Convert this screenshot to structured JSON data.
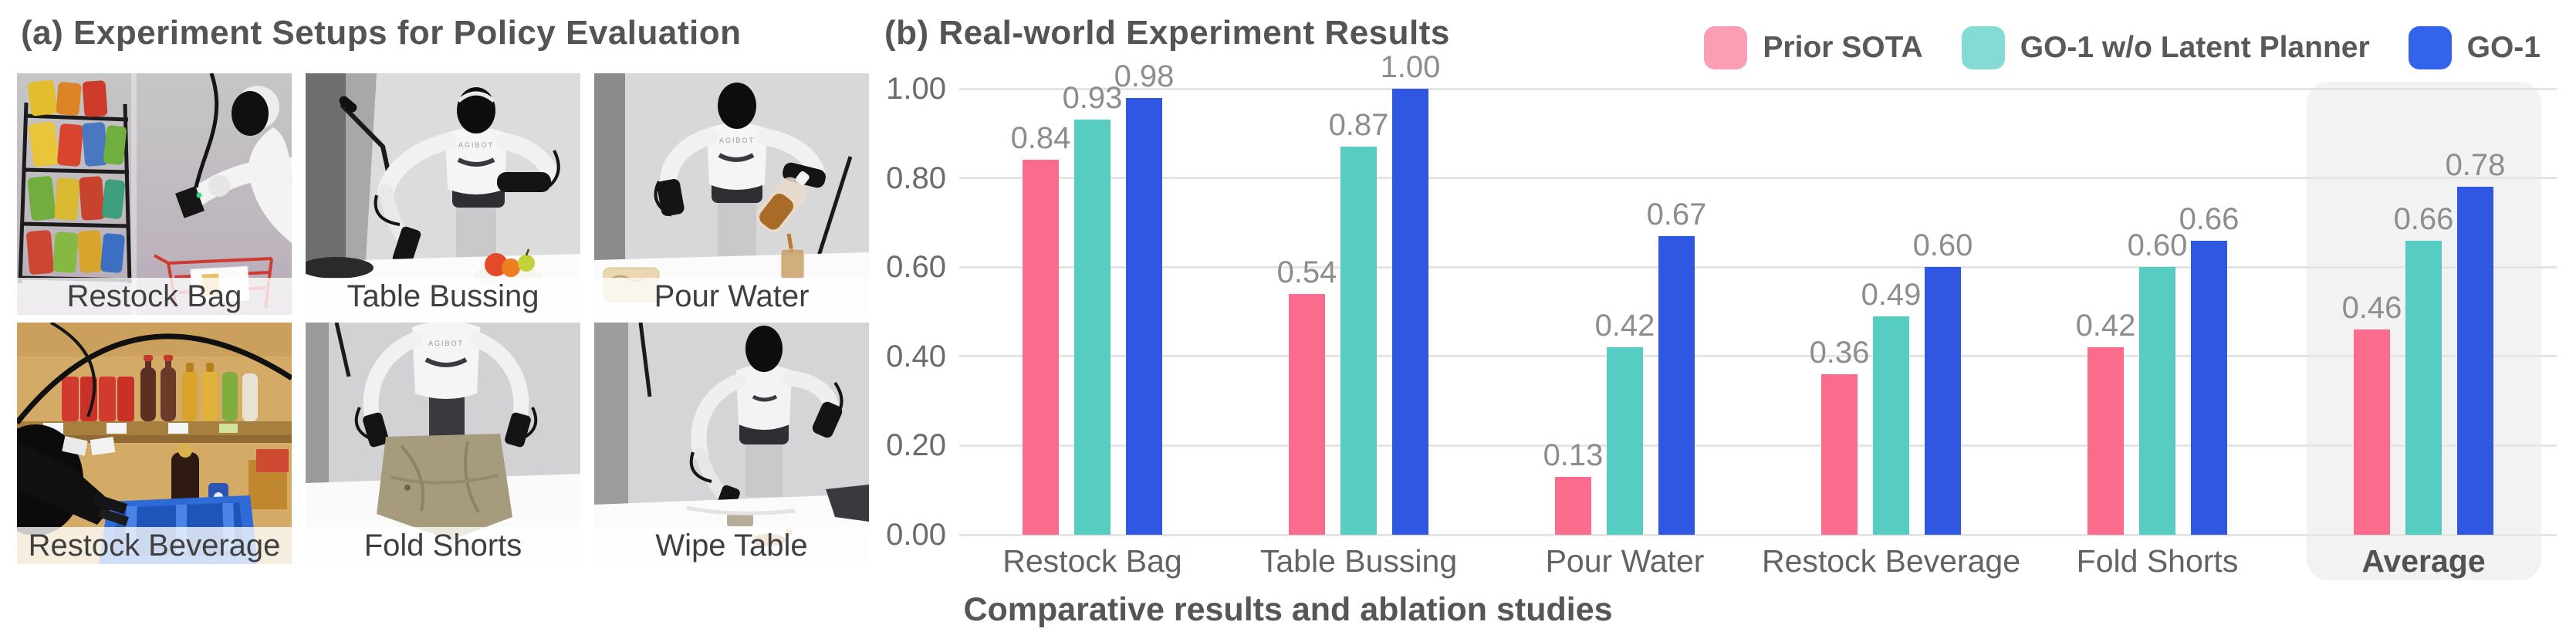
{
  "figure": {
    "panel_a_title": "(a) Experiment Setups for Policy Evaluation",
    "panel_b_title": "(b) Real-world Experiment Results",
    "caption": "Comparative results and ablation studies"
  },
  "robot_brand": "AGIBOT",
  "setups": [
    {
      "label": "Restock Bag"
    },
    {
      "label": "Table Bussing"
    },
    {
      "label": "Pour Water"
    },
    {
      "label": "Restock Beverage"
    },
    {
      "label": "Fold Shorts"
    },
    {
      "label": "Wipe Table"
    }
  ],
  "chart_data": {
    "type": "bar",
    "title": "(b) Real-world Experiment Results",
    "categories": [
      "Restock Bag",
      "Table Bussing",
      "Pour Water",
      "Restock Beverage",
      "Fold Shorts",
      "Average"
    ],
    "series": [
      {
        "name": "Prior SOTA",
        "color": "#FB6C8C",
        "legend_color": "#FA9DB5",
        "values": [
          0.84,
          0.54,
          0.13,
          0.36,
          0.42,
          0.46
        ]
      },
      {
        "name": "GO-1 w/o Latent Planner",
        "color": "#56CCC3",
        "legend_color": "#83DBD4",
        "values": [
          0.93,
          0.87,
          0.42,
          0.49,
          0.6,
          0.66
        ]
      },
      {
        "name": "GO-1",
        "color": "#2F57E2",
        "legend_color": "#3363EA",
        "values": [
          0.98,
          1.0,
          0.67,
          0.6,
          0.66,
          0.78
        ]
      }
    ],
    "xlabel": "",
    "ylabel": "",
    "ylim": [
      0,
      1.0
    ],
    "yticks": [
      "0.00",
      "0.20",
      "0.40",
      "0.60",
      "0.80",
      "1.00"
    ],
    "grid": true,
    "legend_position": "top-right",
    "highlight_category": "Average",
    "value_label_format": "0.00",
    "colors": {
      "gridline": "#E5E5E5",
      "tick_text": "#6b6b6b",
      "value_text": "#8d8d8d",
      "category_text": "#636363",
      "highlight_bg": "#F2F2F2",
      "title_text": "#545454"
    }
  }
}
